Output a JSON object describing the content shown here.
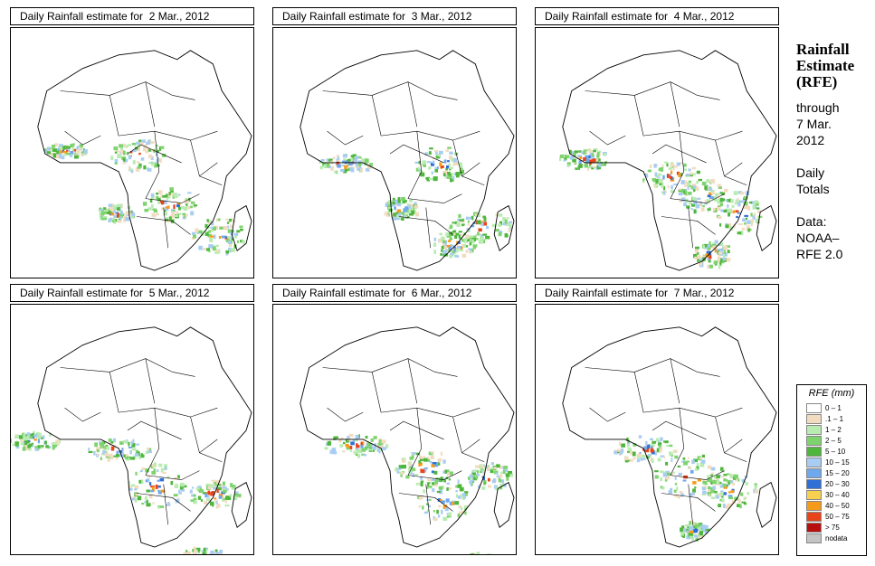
{
  "panels": [
    {
      "title": "Daily Rainfall estimate for  2 Mar., 2012"
    },
    {
      "title": "Daily Rainfall estimate for  3 Mar., 2012"
    },
    {
      "title": "Daily Rainfall estimate for  4 Mar., 2012"
    },
    {
      "title": "Daily Rainfall estimate for  5 Mar., 2012"
    },
    {
      "title": "Daily Rainfall estimate for  6 Mar., 2012"
    },
    {
      "title": "Daily Rainfall estimate for  7 Mar., 2012"
    }
  ],
  "side": {
    "heading_line1": "Rainfall",
    "heading_line2": "Estimate",
    "heading_line3": "(RFE)",
    "through_line1": "through",
    "through_line2": "7 Mar.",
    "through_line3": "2012",
    "totals_line1": "Daily",
    "totals_line2": "Totals",
    "data_line1": "Data:",
    "data_line2": "NOAA–",
    "data_line3": "RFE 2.0"
  },
  "legend": {
    "title": "RFE (mm)",
    "items": [
      {
        "label": "0 – 1",
        "color": "#ffffff"
      },
      {
        "label": ".1 – 1",
        "color": "#f2dcc0"
      },
      {
        "label": "1 – 2",
        "color": "#b8ecb0"
      },
      {
        "label": "2 – 5",
        "color": "#7ed36e"
      },
      {
        "label": "5 – 10",
        "color": "#4fb63d"
      },
      {
        "label": "10 – 15",
        "color": "#a9cdf2"
      },
      {
        "label": "15 – 20",
        "color": "#6fa8ec"
      },
      {
        "label": "20 – 30",
        "color": "#2f6fd6"
      },
      {
        "label": "30 – 40",
        "color": "#f8d050"
      },
      {
        "label": "40 – 50",
        "color": "#f59a1a"
      },
      {
        "label": "50 – 75",
        "color": "#e8441a"
      },
      {
        "label": "> 75",
        "color": "#b81010"
      },
      {
        "label": "nodata",
        "color": "#c4c4c4"
      }
    ]
  }
}
